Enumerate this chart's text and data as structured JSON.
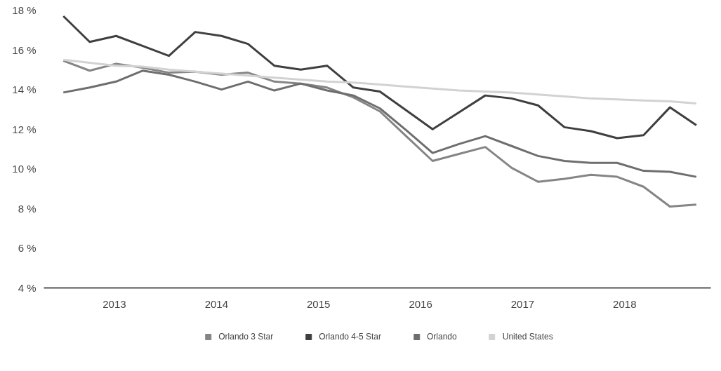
{
  "chart_data": {
    "type": "line",
    "x": [
      2012.5,
      2012.758,
      2013.017,
      2013.275,
      2013.534,
      2013.792,
      2014.05,
      2014.309,
      2014.567,
      2014.826,
      2015.084,
      2015.342,
      2015.601,
      2015.859,
      2016.118,
      2016.376,
      2016.634,
      2016.893,
      2017.151,
      2017.41,
      2017.668,
      2017.926,
      2018.185,
      2018.443,
      2018.702
    ],
    "xlim": [
      2012.309,
      2018.844
    ],
    "xticks": [
      2013,
      2014,
      2015,
      2016,
      2017,
      2018
    ],
    "ylim": [
      4,
      18
    ],
    "yticks": [
      {
        "value": 4,
        "label": "4 %"
      },
      {
        "value": 6,
        "label": "6 %"
      },
      {
        "value": 8,
        "label": "8 %"
      },
      {
        "value": 10,
        "label": "10 %"
      },
      {
        "value": 12,
        "label": "12 %"
      },
      {
        "value": 14,
        "label": "14 %"
      },
      {
        "value": 16,
        "label": "16 %"
      },
      {
        "value": 18,
        "label": "18 %"
      }
    ],
    "grid": false,
    "legend": "bottom",
    "marker": "none",
    "line_style": "solid",
    "series": [
      {
        "name": "Orlando 3 Star",
        "color": "#858585",
        "values": [
          15.45,
          14.95,
          15.3,
          15.1,
          14.85,
          14.9,
          14.75,
          14.85,
          14.4,
          14.3,
          14.1,
          13.6,
          12.9,
          11.65,
          10.4,
          10.75,
          11.1,
          10.05,
          9.35,
          9.5,
          9.7,
          9.6,
          9.1,
          8.1,
          8.2
        ]
      },
      {
        "name": "Orlando 4-5 Star",
        "color": "#3f3f3f",
        "values": [
          17.7,
          16.4,
          16.7,
          16.2,
          15.7,
          16.9,
          16.7,
          16.3,
          15.2,
          15.0,
          15.2,
          14.1,
          13.9,
          12.95,
          12.0,
          12.85,
          13.7,
          13.55,
          13.2,
          12.1,
          11.9,
          11.55,
          11.7,
          13.1,
          12.2
        ]
      },
      {
        "name": "Orlando",
        "color": "#6e6e6e",
        "values": [
          13.85,
          14.1,
          14.4,
          14.95,
          14.75,
          14.4,
          14.0,
          14.4,
          13.95,
          14.3,
          13.95,
          13.7,
          13.05,
          11.95,
          10.8,
          11.25,
          11.65,
          11.15,
          10.65,
          10.4,
          10.3,
          10.3,
          9.9,
          9.85,
          9.6
        ]
      },
      {
        "name": "United States",
        "color": "#d2d2d2",
        "values": [
          15.5,
          15.35,
          15.2,
          15.15,
          15.0,
          14.9,
          14.8,
          14.7,
          14.6,
          14.5,
          14.4,
          14.35,
          14.25,
          14.15,
          14.05,
          13.95,
          13.9,
          13.85,
          13.75,
          13.65,
          13.55,
          13.5,
          13.45,
          13.4,
          13.3
        ]
      }
    ]
  }
}
